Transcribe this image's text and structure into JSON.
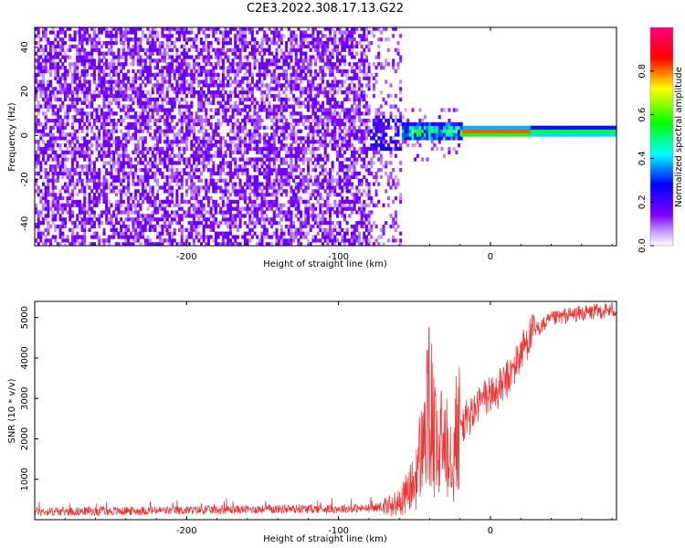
{
  "figure": {
    "title": "C2E3.2022.308.17.13.G22"
  },
  "chart_data": [
    {
      "type": "heatmap",
      "xlabel": "Height of straight line (km)",
      "ylabel": "Frequency (Hz)",
      "xlim": [
        -300,
        83
      ],
      "ylim": [
        -50,
        49
      ],
      "x_ticks": [
        "-200",
        "-100",
        "0"
      ],
      "x_tick_values": [
        -200,
        -100,
        0
      ],
      "y_ticks": [
        "-40",
        "-20",
        "0",
        "20",
        "40"
      ],
      "y_tick_values": [
        -40,
        -20,
        0,
        20,
        40
      ],
      "grid": false,
      "colorbar": {
        "label": "Normalized spectral amplitude",
        "range": [
          0,
          1
        ],
        "ticks": [
          "0.0",
          "0.2",
          "0.4",
          "0.6",
          "0.8"
        ],
        "tick_values": [
          0,
          0.2,
          0.4,
          0.6,
          0.8
        ],
        "colormap": [
          "#ffffff",
          "#8000ff",
          "#0000ff",
          "#00ffff",
          "#00ff00",
          "#ffff00",
          "#ff0000",
          "#ff0080"
        ]
      },
      "description_values": {
        "noise_region_x": [
          -300,
          -60
        ],
        "signal_band_center_freq_hz": 0,
        "signal_band_x": [
          -80,
          83
        ]
      }
    },
    {
      "type": "line",
      "xlabel": "Height of straight line (km)",
      "ylabel": "SNR (10 * v/v)",
      "xlim": [
        -300,
        83
      ],
      "ylim": [
        0,
        5400
      ],
      "x_ticks": [
        "-200",
        "-100",
        "0"
      ],
      "x_tick_values": [
        -200,
        -100,
        0
      ],
      "y_ticks": [
        "1000",
        "2000",
        "3000",
        "4000",
        "5000"
      ],
      "y_tick_values": [
        1000,
        2000,
        3000,
        4000,
        5000
      ],
      "grid": false,
      "series": [
        {
          "color": "#f03030",
          "x": [
            -300,
            -250,
            -200,
            -150,
            -100,
            -80,
            -70,
            -60,
            -50,
            -45,
            -40,
            -35,
            -30,
            -25,
            -20,
            -15,
            -10,
            -5,
            0,
            5,
            10,
            15,
            20,
            25,
            30,
            40,
            50,
            60,
            70,
            83
          ],
          "y": [
            200,
            210,
            230,
            260,
            270,
            280,
            320,
            420,
            900,
            1800,
            2800,
            1500,
            2200,
            1800,
            2300,
            2500,
            2700,
            3000,
            3100,
            3200,
            3400,
            3700,
            4100,
            4500,
            4700,
            4950,
            5050,
            5100,
            5150,
            5200
          ]
        }
      ]
    }
  ]
}
